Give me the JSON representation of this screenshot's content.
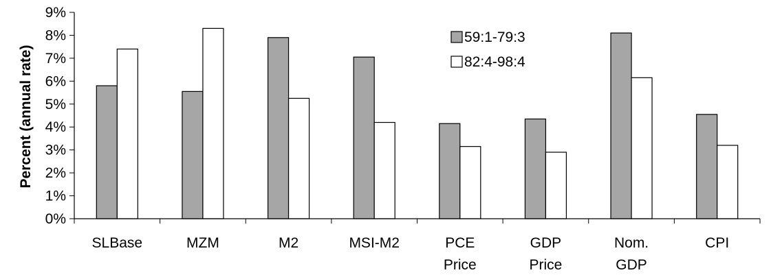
{
  "chart_data": {
    "type": "bar",
    "title": "",
    "xlabel": "",
    "ylabel": "Percent (annual rate)",
    "ylim": [
      0,
      9
    ],
    "yticks": [
      "0%",
      "1%",
      "2%",
      "3%",
      "4%",
      "5%",
      "6%",
      "7%",
      "8%",
      "9%"
    ],
    "categories": [
      [
        "SLBase"
      ],
      [
        "MZM"
      ],
      [
        "M2"
      ],
      [
        "MSI-M2"
      ],
      [
        "PCE",
        "Price"
      ],
      [
        "GDP",
        "Price"
      ],
      [
        "Nom.",
        "GDP"
      ],
      [
        "CPI"
      ]
    ],
    "series": [
      {
        "name": "59:1-79:3",
        "color": "#a6a6a6",
        "values": [
          5.8,
          5.55,
          7.9,
          7.05,
          4.15,
          4.35,
          8.1,
          4.55
        ]
      },
      {
        "name": "82:4-98:4",
        "color": "#ffffff",
        "values": [
          7.4,
          8.3,
          5.25,
          4.2,
          3.15,
          2.9,
          6.15,
          3.2
        ]
      }
    ],
    "grid": false,
    "legend": "top-right"
  }
}
